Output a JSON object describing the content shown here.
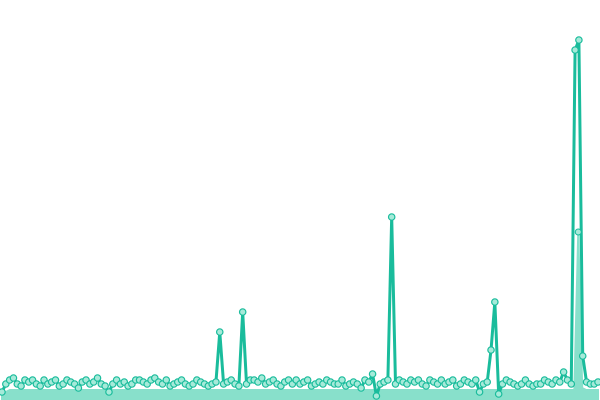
{
  "chart_data": {
    "type": "line",
    "title": "",
    "xlabel": "",
    "ylabel": "",
    "ylim": [
      0,
      100
    ],
    "grid": false,
    "legend": "none",
    "colors": {
      "line": "#1abc9c",
      "area": "#88e0cb",
      "marker_fill": "#a6ead9",
      "marker_stroke": "#1abc9c"
    },
    "series": [
      {
        "type": "line",
        "values": [
          2,
          4,
          5,
          5.5,
          4,
          3.5,
          5,
          4.5,
          5,
          4,
          3.5,
          5,
          4,
          4.5,
          5,
          3.5,
          4,
          5,
          4.5,
          4,
          3,
          4.5,
          5,
          4,
          4.5,
          5.5,
          4,
          3.5,
          2,
          4,
          5,
          4,
          4.5,
          3.5,
          4,
          5,
          5,
          4.5,
          4,
          5,
          5.5,
          4.5,
          4,
          5,
          3.5,
          4,
          4.5,
          5,
          4,
          3.5,
          4,
          5,
          4.5,
          4,
          3.5,
          4,
          4.5,
          17,
          4,
          4.5,
          5,
          4,
          3.5,
          22,
          4,
          5,
          5,
          4.5,
          5.5,
          4,
          4.5,
          5,
          4,
          3.5,
          4.5,
          5,
          4,
          5,
          4,
          4.5,
          5,
          3.5,
          4,
          4.5,
          4,
          5,
          4.5,
          4,
          4,
          5,
          3.5,
          4,
          4.5,
          4,
          3,
          5,
          4.5,
          6.5,
          1,
          4,
          4.5,
          5,
          45.75,
          4,
          5,
          4.5,
          4,
          5,
          4.5,
          5,
          4,
          3.5,
          5,
          4.5,
          4,
          5,
          4,
          4.5,
          5,
          3.5,
          4,
          5,
          4.5,
          4,
          5,
          2,
          4,
          4.5,
          12.5,
          24.5,
          1.5,
          4,
          5,
          4.5,
          4,
          3.5,
          4,
          5,
          4,
          3.5,
          4,
          4,
          5,
          4.5,
          4,
          5,
          4.5,
          7,
          5,
          4,
          87.5,
          90,
          11,
          4.5,
          4,
          4,
          4.5
        ]
      },
      {
        "type": "area",
        "values": [
          1,
          2,
          2.5,
          2.5,
          2.5,
          2.5,
          2.5,
          2.5,
          2.5,
          2.5,
          2.5,
          2.5,
          2.5,
          2.5,
          2.5,
          2.5,
          2.5,
          2.5,
          2.5,
          2.5,
          2.5,
          2.5,
          2.5,
          2.5,
          2.5,
          2.5,
          2.5,
          2.5,
          2.5,
          2.5,
          2.5,
          2.5,
          2.5,
          2.5,
          2.5,
          2.5,
          2.5,
          2.5,
          2.5,
          2.5,
          2.5,
          2.5,
          2.5,
          2.5,
          2.5,
          2.5,
          2.5,
          2.5,
          2.5,
          2.5,
          2.5,
          2.5,
          2.5,
          2.5,
          2.5,
          2.5,
          2.5,
          2.5,
          2.5,
          2.5,
          2.5,
          2.5,
          2.5,
          2.5,
          2.5,
          2.5,
          2.5,
          2.5,
          2.5,
          2.5,
          2.5,
          2.5,
          2.5,
          2.5,
          2.5,
          2.5,
          2.5,
          2.5,
          2.5,
          2.5,
          2.5,
          2.5,
          2.5,
          2.5,
          2.5,
          2.5,
          2.5,
          2.5,
          2.5,
          2.5,
          2.5,
          2.5,
          2.5,
          2.5,
          2.5,
          2.5,
          2.5,
          2.5,
          2.5,
          2.5,
          2.5,
          2.5,
          2.5,
          2.5,
          2.5,
          2.5,
          2.5,
          2.5,
          2.5,
          2.5,
          2.5,
          2.5,
          2.5,
          2.5,
          2.5,
          2.5,
          2.5,
          2.5,
          2.5,
          2.5,
          2.5,
          2.5,
          2.5,
          2.5,
          2.5,
          2.5,
          2.5,
          2.5,
          2.5,
          2.5,
          2.5,
          2.5,
          2.5,
          2.5,
          2.5,
          2.5,
          2.5,
          2.5,
          2.5,
          2.5,
          2.5,
          2.5,
          2.5,
          2.5,
          2.5,
          2.5,
          42,
          3,
          2.5,
          2.5,
          2.5,
          2.5
        ]
      }
    ]
  }
}
